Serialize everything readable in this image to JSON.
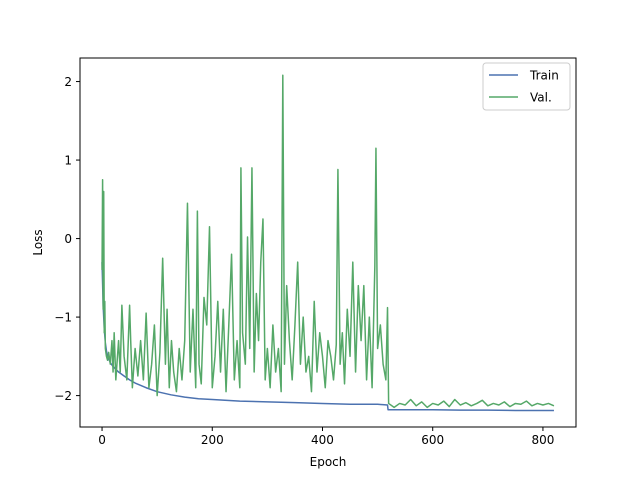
{
  "chart_data": {
    "type": "line",
    "title": "",
    "xlabel": "Epoch",
    "ylabel": "Loss",
    "xlim": [
      -40,
      860
    ],
    "ylim": [
      -2.4,
      2.3
    ],
    "xticks": [
      0,
      200,
      400,
      600,
      800
    ],
    "yticks": [
      -2,
      -1,
      0,
      1,
      2
    ],
    "xtick_labels": [
      "0",
      "200",
      "400",
      "600",
      "800"
    ],
    "ytick_labels": [
      "−2",
      "−1",
      "0",
      "1",
      "2"
    ],
    "grid": false,
    "legend": {
      "placement": "top-right"
    },
    "series": [
      {
        "name": "Train",
        "color": "#4c72b0",
        "x": [
          0,
          2,
          4,
          6,
          8,
          10,
          15,
          20,
          30,
          40,
          50,
          60,
          80,
          100,
          125,
          150,
          175,
          200,
          250,
          300,
          350,
          400,
          450,
          500,
          518,
          519,
          540,
          560,
          600,
          650,
          700,
          750,
          800,
          820
        ],
        "y": [
          -0.3,
          -0.85,
          -1.15,
          -1.33,
          -1.43,
          -1.5,
          -1.58,
          -1.63,
          -1.7,
          -1.75,
          -1.8,
          -1.84,
          -1.9,
          -1.95,
          -1.99,
          -2.02,
          -2.04,
          -2.05,
          -2.07,
          -2.08,
          -2.09,
          -2.1,
          -2.11,
          -2.11,
          -2.12,
          -2.18,
          -2.18,
          -2.18,
          -2.18,
          -2.185,
          -2.185,
          -2.19,
          -2.19,
          -2.19
        ]
      },
      {
        "name": "Val.",
        "color": "#55a868",
        "x": [
          0,
          1,
          2,
          3,
          4,
          5,
          6,
          8,
          10,
          12,
          15,
          18,
          20,
          22,
          25,
          28,
          30,
          33,
          36,
          40,
          45,
          50,
          52,
          55,
          60,
          65,
          70,
          75,
          80,
          85,
          90,
          95,
          100,
          105,
          110,
          115,
          118,
          122,
          126,
          130,
          135,
          140,
          145,
          150,
          155,
          160,
          165,
          170,
          173,
          176,
          180,
          185,
          190,
          195,
          200,
          205,
          210,
          215,
          220,
          225,
          230,
          235,
          240,
          245,
          250,
          252,
          255,
          260,
          264,
          268,
          272,
          276,
          280,
          284,
          288,
          292,
          296,
          300,
          305,
          310,
          315,
          320,
          325,
          328,
          331,
          335,
          340,
          345,
          350,
          355,
          360,
          365,
          370,
          375,
          380,
          385,
          390,
          395,
          400,
          405,
          410,
          415,
          420,
          425,
          428,
          432,
          436,
          440,
          445,
          450,
          455,
          460,
          465,
          470,
          475,
          480,
          485,
          490,
          495,
          497,
          500,
          505,
          510,
          515,
          518,
          520,
          530,
          540,
          550,
          560,
          570,
          580,
          590,
          600,
          610,
          620,
          630,
          640,
          650,
          660,
          670,
          680,
          690,
          700,
          710,
          720,
          730,
          740,
          750,
          760,
          770,
          780,
          790,
          800,
          810,
          820
        ],
        "y": [
          -0.4,
          0.75,
          -0.9,
          0.6,
          -1.2,
          -0.8,
          -1.4,
          -1.5,
          -1.55,
          -1.45,
          -1.6,
          -1.3,
          -1.7,
          -1.2,
          -1.8,
          -1.5,
          -1.3,
          -1.7,
          -0.85,
          -1.5,
          -1.8,
          -0.85,
          -1.3,
          -1.9,
          -1.4,
          -1.75,
          -1.3,
          -1.8,
          -0.95,
          -1.9,
          -1.6,
          -1.1,
          -2.0,
          -1.45,
          -0.25,
          -1.6,
          -0.9,
          -1.9,
          -1.3,
          -1.7,
          -1.95,
          -1.4,
          -1.8,
          -1.3,
          0.45,
          -1.7,
          -0.9,
          -1.9,
          0.35,
          -1.6,
          -1.85,
          -0.75,
          -1.1,
          0.15,
          -1.9,
          -1.5,
          -0.8,
          -1.7,
          -0.9,
          -1.95,
          -1.1,
          -0.2,
          -1.8,
          -1.3,
          -1.9,
          0.9,
          -1.2,
          -1.6,
          0.02,
          -1.4,
          0.9,
          -1.7,
          -0.7,
          -1.3,
          -0.3,
          0.25,
          -1.8,
          -1.4,
          -1.9,
          -1.1,
          -1.7,
          -1.4,
          -1.95,
          2.08,
          -1.6,
          -0.6,
          -1.3,
          -1.8,
          -1.1,
          -0.3,
          -1.6,
          -1.0,
          -1.7,
          -1.5,
          -1.95,
          -0.8,
          -1.7,
          -1.2,
          -1.5,
          -1.9,
          -1.3,
          -1.5,
          -1.8,
          -1.35,
          0.88,
          -1.6,
          -1.2,
          -1.85,
          -0.9,
          -1.5,
          -0.3,
          -1.7,
          -0.6,
          -1.3,
          -0.6,
          -1.8,
          -1.0,
          -1.9,
          -0.35,
          1.15,
          -1.4,
          -1.1,
          -1.6,
          -1.8,
          -0.88,
          -2.1,
          -2.15,
          -2.1,
          -2.12,
          -2.05,
          -2.13,
          -2.08,
          -2.15,
          -2.1,
          -2.12,
          -2.07,
          -2.14,
          -2.05,
          -2.12,
          -2.09,
          -2.13,
          -2.1,
          -2.06,
          -2.13,
          -2.1,
          -2.12,
          -2.08,
          -2.14,
          -2.1,
          -2.11,
          -2.07,
          -2.13,
          -2.1,
          -2.12,
          -2.1,
          -2.13
        ]
      }
    ]
  }
}
